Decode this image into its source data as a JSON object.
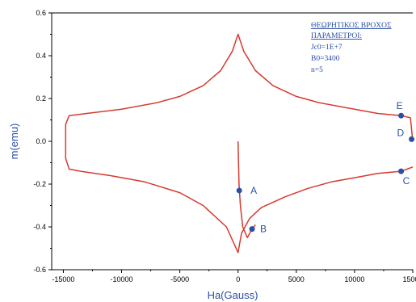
{
  "chart_data": {
    "type": "line",
    "xlabel": "Ha(Gauss)",
    "ylabel": "m(emu)",
    "xlim": [
      -16000,
      15000
    ],
    "ylim": [
      -0.6,
      0.6
    ],
    "x_ticks": [
      -15000,
      -10000,
      -5000,
      0,
      5000,
      10000,
      15000
    ],
    "x_tick_labels": [
      "-15000",
      "-10000",
      "-5000",
      "0",
      "5000",
      "10000",
      "15000"
    ],
    "y_ticks": [
      -0.6,
      -0.4,
      -0.2,
      0.0,
      0.2,
      0.4,
      0.6
    ],
    "y_tick_labels": [
      "-0.6",
      "-0.4",
      "-0.2",
      "0.0",
      "0.2",
      "0.4",
      "0.6"
    ],
    "line_color": "#d63a2f",
    "point_color": "#2a4fa8",
    "virgin_curve": {
      "x": [
        0,
        80,
        200,
        400,
        800,
        1200,
        1500
      ],
      "y": [
        0.0,
        -0.2,
        -0.3,
        -0.4,
        -0.45,
        -0.41,
        -0.39
      ]
    },
    "loop": {
      "x": [
        15000,
        14000,
        12000,
        10000,
        8000,
        6000,
        4000,
        2000,
        1000,
        300,
        0,
        -1000,
        -3000,
        -5000,
        -8000,
        -11000,
        -13500,
        -14500,
        -14800,
        -14800,
        -14500,
        -13000,
        -10000,
        -7000,
        -5000,
        -3000,
        -1500,
        -500,
        0,
        500,
        1500,
        3000,
        5000,
        7000,
        10000,
        12000,
        14000,
        14800,
        15000
      ],
      "y": [
        -0.12,
        -0.14,
        -0.15,
        -0.17,
        -0.19,
        -0.22,
        -0.26,
        -0.31,
        -0.36,
        -0.43,
        -0.52,
        -0.4,
        -0.3,
        -0.24,
        -0.19,
        -0.16,
        -0.14,
        -0.13,
        -0.08,
        0.08,
        0.12,
        0.13,
        0.15,
        0.18,
        0.21,
        0.26,
        0.33,
        0.42,
        0.5,
        0.42,
        0.33,
        0.26,
        0.21,
        0.18,
        0.15,
        0.13,
        0.12,
        0.11,
        0.0
      ]
    },
    "points": [
      {
        "label": "A",
        "x": 100,
        "y": -0.23
      },
      {
        "label": "B",
        "x": 1200,
        "y": -0.41
      },
      {
        "label": "C",
        "x": 14000,
        "y": -0.14
      },
      {
        "label": "D",
        "x": 14900,
        "y": 0.01
      },
      {
        "label": "E",
        "x": 14000,
        "y": 0.12
      }
    ],
    "annotation": {
      "title_lines": [
        "ΘΕΩΡΗΤΙΚΟΣ ΒΡΟΧΟΣ",
        "ΠΑΡΑΜΕΤΡΟΙ:"
      ],
      "lines": [
        "Jc0=1E+7",
        "B0=3400",
        "n=5"
      ]
    }
  }
}
